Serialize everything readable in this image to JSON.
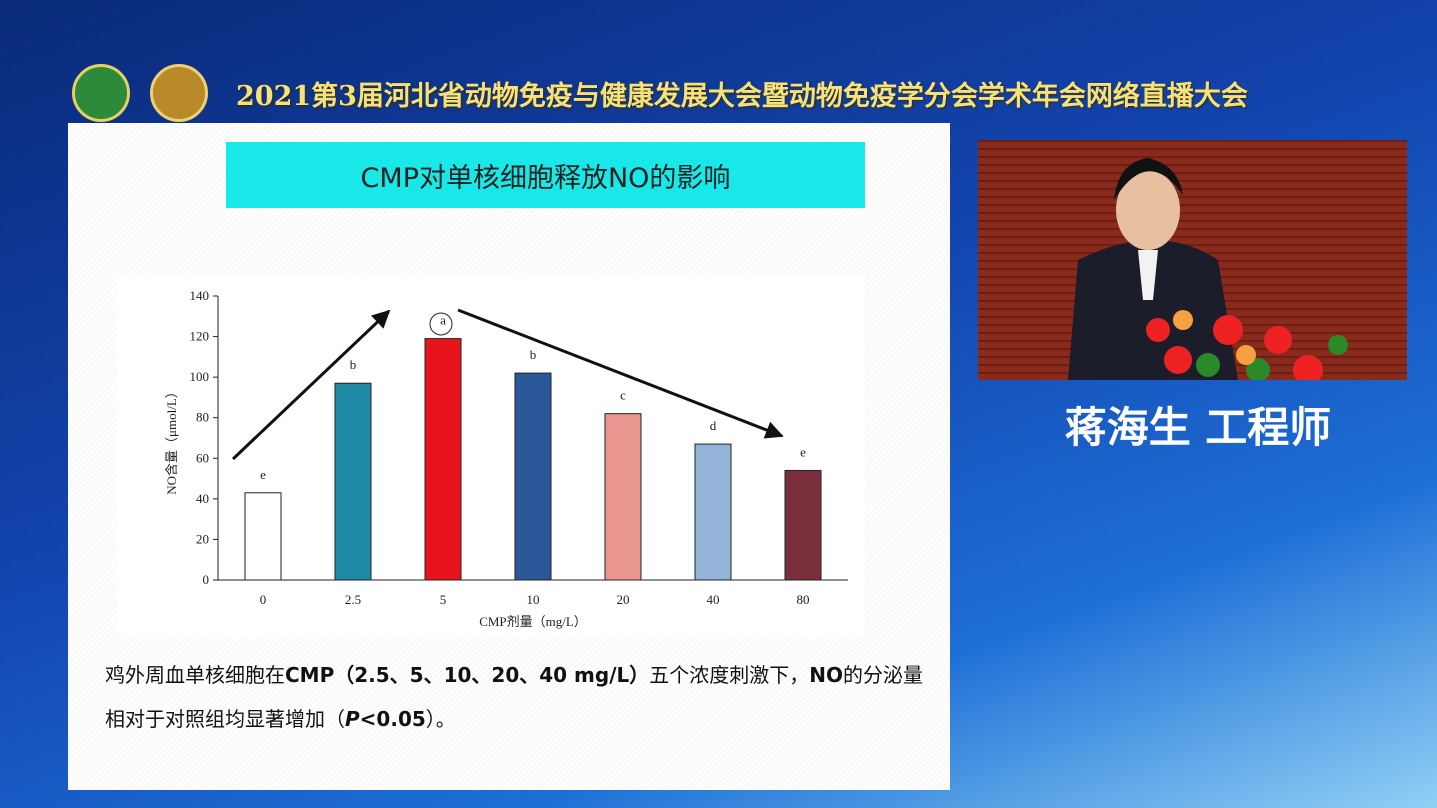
{
  "header": {
    "title": "2021第3届河北省动物免疫与健康发展大会暨动物免疫学分会学术年会网络直播大会"
  },
  "slide": {
    "title": "CMP对单核细胞释放NO的影响",
    "caption": [
      "鸡外周血单核细胞在",
      "CMP（2.5、5、10、20、40 mg/L）",
      "五个浓度刺激下，",
      "NO",
      "的分泌量相对于对照组均显著增加（",
      "P",
      "<0.05",
      "）。"
    ]
  },
  "speaker": {
    "name": "蒋海生 工程师"
  },
  "chart_data": {
    "type": "bar",
    "categories": [
      "0",
      "2.5",
      "5",
      "10",
      "20",
      "40",
      "80"
    ],
    "values": [
      43,
      97,
      119,
      102,
      82,
      67,
      54
    ],
    "letters": [
      "e",
      "b",
      "a",
      "b",
      "c",
      "d",
      "e"
    ],
    "colors": [
      "#ffffff",
      "#1f8aa6",
      "#e8141c",
      "#2a5798",
      "#e99590",
      "#93b4d8",
      "#7b2e3b"
    ],
    "x_label": "CMP剂量（mg/L）",
    "y_label": "NO含量（μmol/L）",
    "ylim": [
      0,
      140
    ],
    "yticks": [
      0,
      20,
      40,
      60,
      80,
      100,
      120,
      140
    ],
    "grid": false
  }
}
